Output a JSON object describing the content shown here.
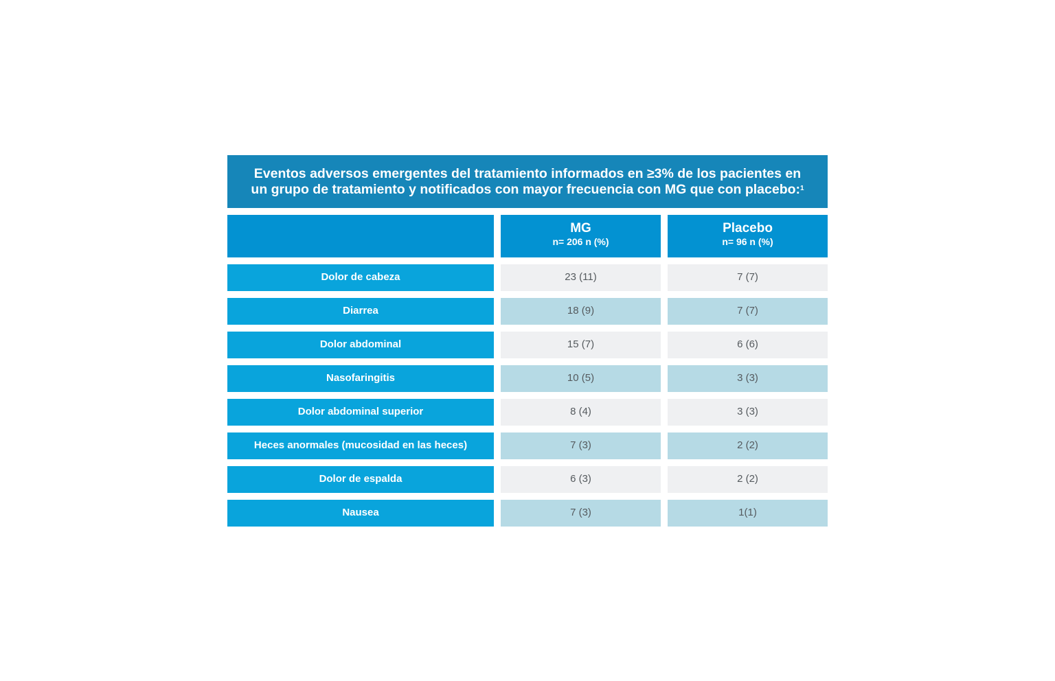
{
  "title": {
    "line1": "Eventos adversos emergentes del tratamiento informados en ≥3% de los pacientes en",
    "line2": "un grupo de tratamiento y notificados con mayor frecuencia con MG que con placebo:",
    "footnote": "1"
  },
  "columns": [
    {
      "name": "MG",
      "sub": "n= 206 n (%)"
    },
    {
      "name": "Placebo",
      "sub": "n= 96 n (%)"
    }
  ],
  "rows": [
    {
      "label": "Dolor de cabeza",
      "mg": "23 (11)",
      "placebo": "7 (7)"
    },
    {
      "label": "Diarrea",
      "mg": "18 (9)",
      "placebo": "7 (7)"
    },
    {
      "label": "Dolor abdominal",
      "mg": "15 (7)",
      "placebo": "6 (6)"
    },
    {
      "label": "Nasofaringitis",
      "mg": "10 (5)",
      "placebo": "3 (3)"
    },
    {
      "label": "Dolor abdominal superior",
      "mg": "8 (4)",
      "placebo": "3 (3)"
    },
    {
      "label": "Heces anormales (mucosidad en las heces)",
      "mg": "7 (3)",
      "placebo": "2 (2)"
    },
    {
      "label": "Dolor de espalda",
      "mg": "6 (3)",
      "placebo": "2 (2)"
    },
    {
      "label": "Nausea",
      "mg": "7 (3)",
      "placebo": "1(1)"
    }
  ],
  "colors": {
    "title_bg": "#1686b9",
    "header_bg": "#0392d2",
    "label_bg": "#09a4dc",
    "row_light": "#eff0f2",
    "row_blue": "#b6dae5",
    "value_text": "#555a5e"
  }
}
